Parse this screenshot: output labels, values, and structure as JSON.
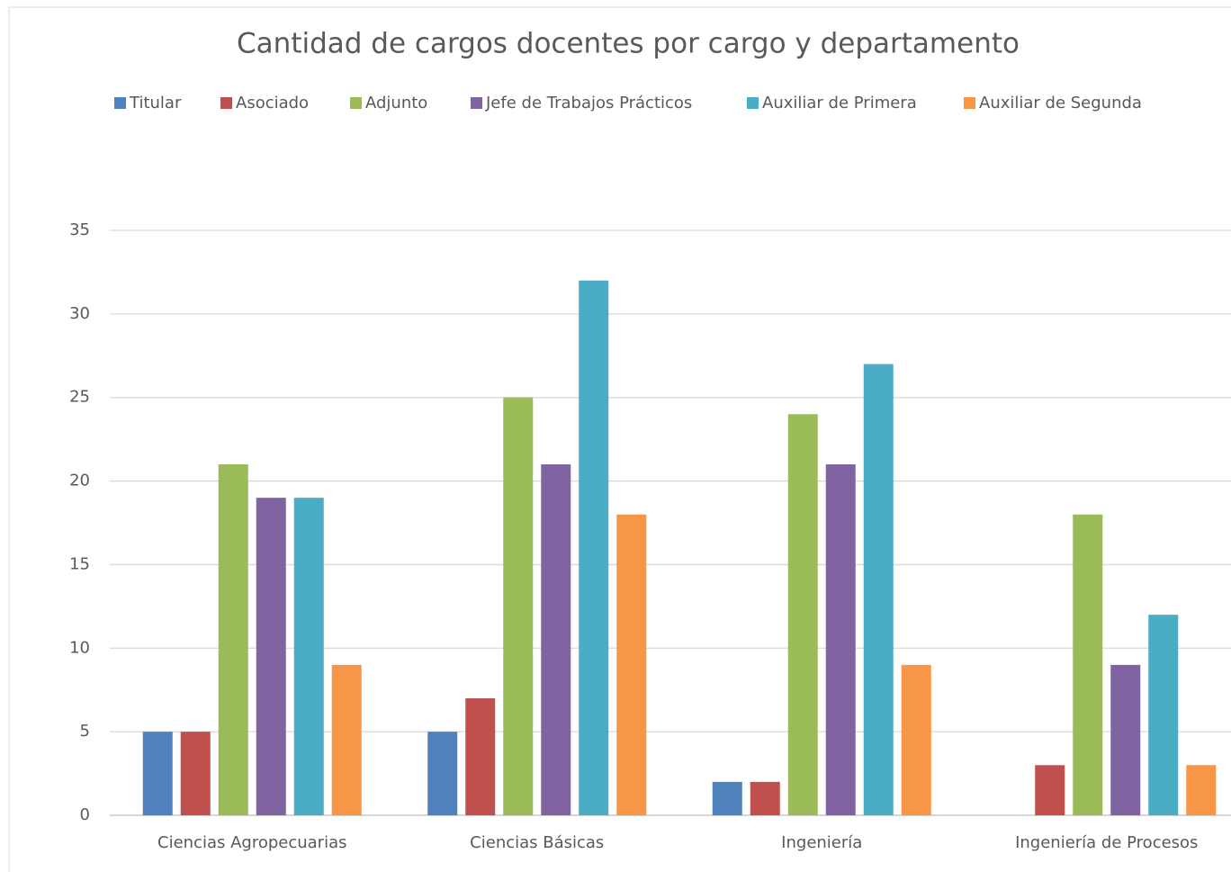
{
  "chart_data": {
    "type": "bar",
    "title": "Cantidad de cargos docentes por cargo y departamento",
    "categories": [
      "Ciencias Agropecuarias",
      "Ciencias Básicas",
      "Ingeniería",
      "Ingeniería de Procesos"
    ],
    "series": [
      {
        "name": "Titular",
        "color": "#4f81bd",
        "values": [
          5,
          5,
          2,
          0
        ]
      },
      {
        "name": "Asociado",
        "color": "#c0504d",
        "values": [
          5,
          7,
          2,
          3
        ]
      },
      {
        "name": "Adjunto",
        "color": "#9bbb59",
        "values": [
          21,
          25,
          24,
          18
        ]
      },
      {
        "name": "Jefe de Trabajos Prácticos",
        "color": "#8064a2",
        "values": [
          19,
          21,
          21,
          9
        ]
      },
      {
        "name": "Auxiliar de Primera",
        "color": "#4bacc6",
        "values": [
          19,
          32,
          27,
          12
        ]
      },
      {
        "name": "Auxiliar de Segunda",
        "color": "#f79646",
        "values": [
          9,
          18,
          9,
          3
        ]
      }
    ],
    "ylim": [
      0,
      35
    ],
    "yticks": [
      0,
      5,
      10,
      15,
      20,
      25,
      30,
      35
    ],
    "grid": true,
    "legend": "top"
  }
}
